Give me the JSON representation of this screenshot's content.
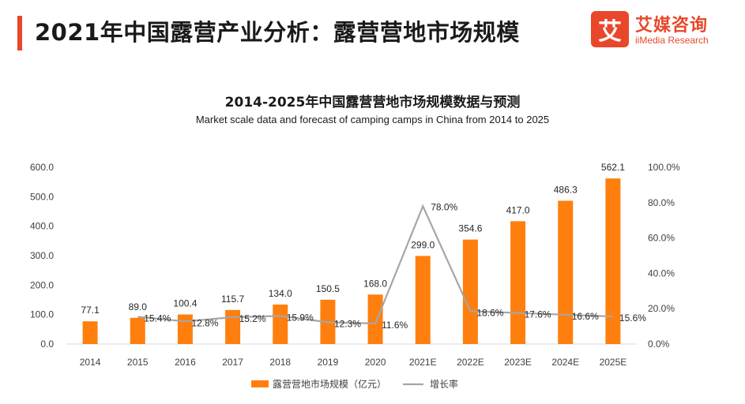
{
  "header": {
    "title": "2021年中国露营产业分析：露营营地市场规模",
    "accent_color": "#e8472a"
  },
  "logo": {
    "mark_char": "艾",
    "name_cn": "艾媒咨询",
    "name_en": "iiMedia Research",
    "color": "#e8472a"
  },
  "chart_data": {
    "type": "bar",
    "title": "2014-2025年中国露营营地市场规模数据与预测",
    "subtitle": "Market scale data and forecast of camping camps in China from 2014 to 2025",
    "categories": [
      "2014",
      "2015",
      "2016",
      "2017",
      "2018",
      "2019",
      "2020",
      "2021E",
      "2022E",
      "2023E",
      "2024E",
      "2025E"
    ],
    "series": [
      {
        "name": "露营营地市场规模（亿元）",
        "type": "bar",
        "axis": "left",
        "color": "#ff7f0e",
        "values": [
          77.1,
          89.0,
          100.4,
          115.7,
          134.0,
          150.5,
          168.0,
          299.0,
          354.6,
          417.0,
          486.3,
          562.1
        ],
        "labels": [
          "77.1",
          "89.0",
          "100.4",
          "115.7",
          "134.0",
          "150.5",
          "168.0",
          "299.0",
          "354.6",
          "417.0",
          "486.3",
          "562.1"
        ]
      },
      {
        "name": "增长率",
        "type": "line",
        "axis": "right",
        "color": "#a6a6a6",
        "values": [
          null,
          15.4,
          12.8,
          15.2,
          15.9,
          12.3,
          11.6,
          78.0,
          18.6,
          17.6,
          16.6,
          15.6
        ],
        "labels": [
          "",
          "15.4%",
          "12.8%",
          "15.2%",
          "15.9%",
          "12.3%",
          "11.6%",
          "78.0%",
          "18.6%",
          "17.6%",
          "16.6%",
          "15.6%"
        ]
      }
    ],
    "ylim_left": [
      0,
      600
    ],
    "yticks_left": [
      "0.0",
      "100.0",
      "200.0",
      "300.0",
      "400.0",
      "500.0",
      "600.0"
    ],
    "ylim_right": [
      0,
      100
    ],
    "yticks_right": [
      "0.0%",
      "20.0%",
      "40.0%",
      "60.0%",
      "80.0%",
      "100.0%"
    ],
    "grid": false,
    "legend_position": "bottom-center"
  }
}
